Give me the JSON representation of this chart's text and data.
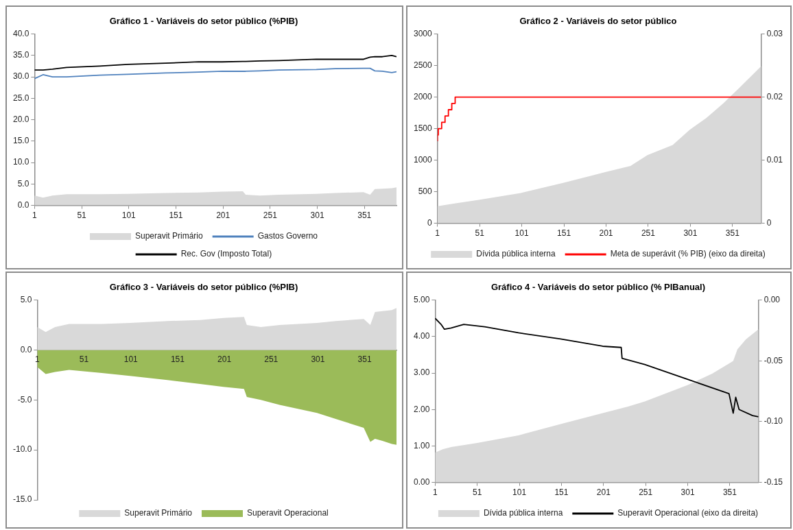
{
  "chart_data": [
    {
      "type": "line",
      "title": "Gráfico 1 - Variáveis do setor público (%PIB)",
      "x": [
        1,
        10,
        20,
        35,
        70,
        100,
        140,
        175,
        200,
        222,
        225,
        240,
        260,
        300,
        320,
        350,
        357,
        362,
        370,
        380,
        385
      ],
      "series": [
        {
          "name": "Superavit Primário",
          "type": "area",
          "color": "#d9d9d9",
          "values": [
            2.3,
            1.8,
            2.3,
            2.6,
            2.6,
            2.7,
            2.9,
            3.0,
            3.2,
            3.3,
            2.5,
            2.3,
            2.5,
            2.7,
            2.9,
            3.1,
            2.5,
            3.8,
            3.9,
            4.0,
            4.2
          ]
        },
        {
          "name": "Gastos Governo",
          "color": "#4f81bd",
          "values": [
            29.6,
            30.5,
            30.0,
            30.0,
            30.4,
            30.6,
            30.9,
            31.1,
            31.3,
            31.3,
            31.3,
            31.4,
            31.6,
            31.7,
            31.9,
            32.0,
            32.0,
            31.4,
            31.3,
            31.0,
            31.2
          ]
        },
        {
          "name": "Rec. Gov (Imposto Total)",
          "color": "#000000",
          "values": [
            31.6,
            31.6,
            31.8,
            32.2,
            32.5,
            32.9,
            33.2,
            33.5,
            33.5,
            33.6,
            33.6,
            33.7,
            33.8,
            34.1,
            34.1,
            34.1,
            34.6,
            34.7,
            34.7,
            35.0,
            34.7
          ]
        }
      ],
      "xlim": [
        1,
        385
      ],
      "xticks": [
        1,
        51,
        101,
        151,
        201,
        251,
        301,
        351
      ],
      "ylim": [
        0,
        40
      ],
      "yticks": [
        {
          "value": 0,
          "label": "0.0"
        },
        {
          "value": 5,
          "label": "5.0"
        },
        {
          "value": 10,
          "label": "10.0"
        },
        {
          "value": 15,
          "label": "15.0"
        },
        {
          "value": 20,
          "label": "20.0"
        },
        {
          "value": 25,
          "label": "25.0"
        },
        {
          "value": 30,
          "label": "30.0"
        },
        {
          "value": 35,
          "label": "35.0"
        },
        {
          "value": 40,
          "label": "40.0"
        }
      ],
      "grid": false,
      "legend": "bottom",
      "marker": "none"
    },
    {
      "type": "area",
      "title": "Gráfico 2 - Variáveis do setor público",
      "series": [
        {
          "name": "Dívida pública interna",
          "color": "#d9d9d9",
          "x": [
            1,
            20,
            50,
            100,
            150,
            200,
            230,
            250,
            280,
            300,
            320,
            340,
            360,
            385
          ],
          "values": [
            270,
            310,
            370,
            480,
            640,
            810,
            910,
            1080,
            1240,
            1480,
            1670,
            1900,
            2160,
            2490
          ]
        },
        {
          "name": "Meta de superávit (% PIB) (eixo da direita)",
          "type": "step",
          "color": "#ff0000",
          "axis": "y2",
          "x": [
            1,
            2,
            6,
            10,
            14,
            18,
            22,
            26,
            385
          ],
          "values": [
            0.013,
            0.014,
            0.015,
            0.016,
            0.017,
            0.018,
            0.019,
            0.02,
            0.02
          ]
        }
      ],
      "xlim": [
        1,
        385
      ],
      "xticks": [
        1,
        51,
        101,
        151,
        201,
        251,
        301,
        351
      ],
      "ylim": [
        0,
        3000
      ],
      "yticks": [
        0,
        500,
        1000,
        1500,
        2000,
        2500,
        3000
      ],
      "y2lim": [
        0,
        0.03
      ],
      "y2ticks": [
        0,
        0.01,
        0.02,
        0.03
      ],
      "grid": false,
      "legend": "bottom",
      "marker": "none"
    },
    {
      "type": "area",
      "title": "Gráfico 3 - Variáveis do setor público (%PIB)",
      "x": [
        1,
        10,
        20,
        35,
        70,
        100,
        140,
        175,
        200,
        222,
        225,
        240,
        260,
        300,
        320,
        350,
        357,
        362,
        370,
        380,
        385
      ],
      "series": [
        {
          "name": "Superavit Primário",
          "color": "#d9d9d9",
          "values": [
            2.3,
            1.8,
            2.3,
            2.6,
            2.6,
            2.7,
            2.9,
            3.0,
            3.2,
            3.3,
            2.5,
            2.3,
            2.5,
            2.7,
            2.9,
            3.1,
            2.5,
            3.8,
            3.9,
            4.0,
            4.2
          ]
        },
        {
          "name": "Superavit Operacional",
          "color": "#9bbb59",
          "values": [
            -1.7,
            -2.4,
            -2.2,
            -2.0,
            -2.3,
            -2.6,
            -3.0,
            -3.4,
            -3.7,
            -3.9,
            -4.7,
            -5.0,
            -5.5,
            -6.3,
            -6.9,
            -7.8,
            -9.2,
            -8.9,
            -9.1,
            -9.4,
            -9.5
          ]
        }
      ],
      "xlim": [
        1,
        385
      ],
      "xticks": [
        1,
        51,
        101,
        151,
        201,
        251,
        301,
        351
      ],
      "ylim": [
        -15,
        5
      ],
      "yticks": [
        {
          "value": -15,
          "label": "-15.0"
        },
        {
          "value": -10,
          "label": "-10.0"
        },
        {
          "value": -5,
          "label": "-5.0"
        },
        {
          "value": 0,
          "label": "0.0"
        },
        {
          "value": 5,
          "label": "5.0"
        }
      ],
      "grid": false,
      "legend": "bottom",
      "marker": "none"
    },
    {
      "type": "line",
      "title": "Gráfico 4 - Variáveis do setor público (% PIBanual)",
      "series": [
        {
          "name": "Dívida pública interna",
          "type": "area",
          "color": "#d9d9d9",
          "x": [
            1,
            10,
            20,
            50,
            100,
            150,
            200,
            230,
            250,
            300,
            330,
            355,
            360,
            370,
            385
          ],
          "values": [
            0.82,
            0.91,
            0.97,
            1.08,
            1.29,
            1.6,
            1.9,
            2.08,
            2.22,
            2.66,
            2.98,
            3.33,
            3.65,
            3.92,
            4.2
          ]
        },
        {
          "name": "Superavit Operacional (eixo da direita)",
          "color": "#000000",
          "axis": "y2",
          "x": [
            1,
            8,
            12,
            20,
            35,
            60,
            100,
            150,
            200,
            222,
            223,
            250,
            300,
            350,
            355,
            358,
            362,
            378,
            385
          ],
          "values": [
            -0.015,
            -0.02,
            -0.024,
            -0.023,
            -0.02,
            -0.022,
            -0.027,
            -0.032,
            -0.038,
            -0.039,
            -0.048,
            -0.053,
            -0.065,
            -0.077,
            -0.093,
            -0.08,
            -0.09,
            -0.095,
            -0.096
          ]
        }
      ],
      "xlim": [
        1,
        385
      ],
      "xticks": [
        1,
        51,
        101,
        151,
        201,
        251,
        301,
        351
      ],
      "ylim": [
        0,
        5
      ],
      "yticks": [
        {
          "value": 0,
          "label": "0.00"
        },
        {
          "value": 1,
          "label": "1.00"
        },
        {
          "value": 2,
          "label": "2.00"
        },
        {
          "value": 3,
          "label": "3.00"
        },
        {
          "value": 4,
          "label": "4.00"
        },
        {
          "value": 5,
          "label": "5.00"
        }
      ],
      "y2lim": [
        -0.15,
        0
      ],
      "y2ticks": [
        {
          "value": -0.15,
          "label": "-0.15"
        },
        {
          "value": -0.1,
          "label": "-0.10"
        },
        {
          "value": -0.05,
          "label": "-0.05"
        },
        {
          "value": 0,
          "label": "0.00"
        }
      ],
      "grid": false,
      "legend": "bottom",
      "marker": "none"
    }
  ]
}
